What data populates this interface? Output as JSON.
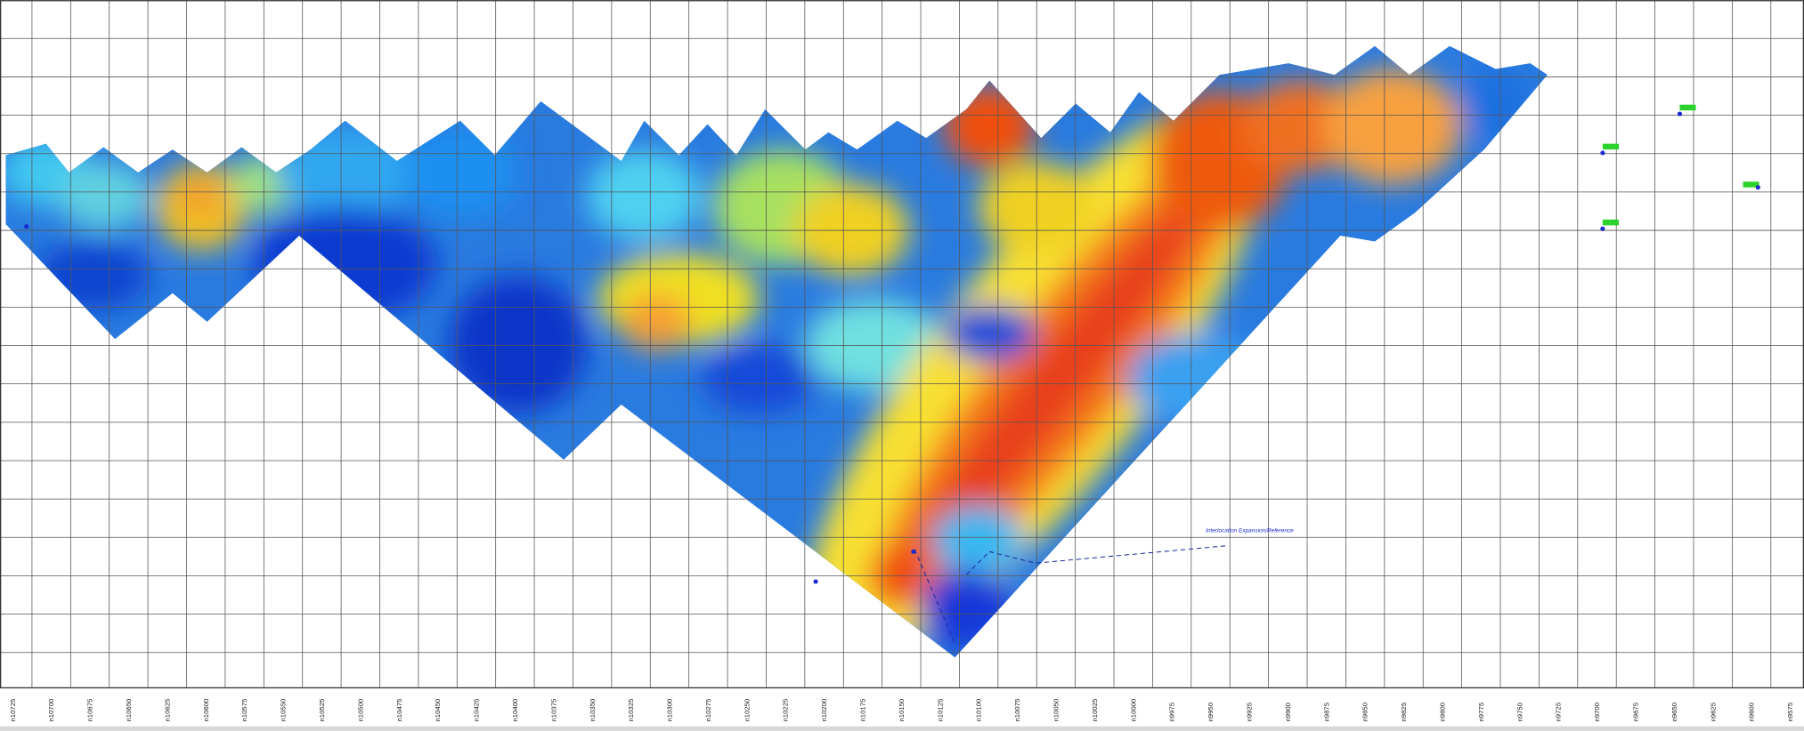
{
  "x_axis_labels": [
    "n10725",
    "n10700",
    "n10675",
    "n10650",
    "n10625",
    "n10600",
    "n10575",
    "n10550",
    "n10525",
    "n10500",
    "n10475",
    "n10450",
    "n10425",
    "n10400",
    "n10375",
    "n10350",
    "n10325",
    "n10300",
    "n10275",
    "n10250",
    "n10225",
    "n10200",
    "n10175",
    "n10150",
    "n10125",
    "n10100",
    "n10075",
    "n10050",
    "n10025",
    "n10000",
    "n9975",
    "n9950",
    "n9925",
    "n9900",
    "n9875",
    "n9850",
    "n9825",
    "n9800",
    "n9775",
    "n9750",
    "n9725",
    "n9700",
    "n9675",
    "n9650",
    "n9625",
    "n9600",
    "n9575"
  ],
  "annotation": "Interlocation Expansion/Reference"
}
